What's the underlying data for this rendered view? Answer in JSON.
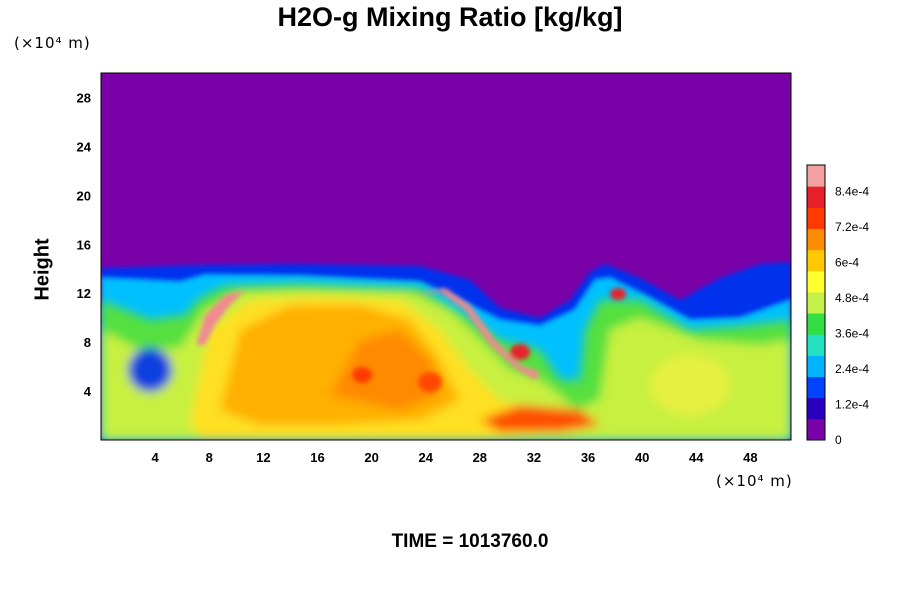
{
  "chart_data": {
    "type": "heatmap",
    "title": "H2O-g Mixing Ratio [kg/kg]",
    "ylabel": "Height",
    "x_unit_label": "(×10⁴ m)",
    "y_unit_label": "(×10⁴ m)",
    "time_label": "TIME = 1013760.0",
    "xlim": [
      0,
      51
    ],
    "ylim": [
      0,
      30
    ],
    "x_ticks": [
      "4",
      "8",
      "12",
      "16",
      "20",
      "24",
      "28",
      "32",
      "36",
      "40",
      "44",
      "48"
    ],
    "y_ticks": [
      "4",
      "8",
      "12",
      "16",
      "20",
      "24",
      "28"
    ],
    "colorbar": {
      "min": 0,
      "max": 0.00093,
      "tick_labels": [
        "0",
        "1.2e-4",
        "2.4e-4",
        "3.6e-4",
        "4.8e-4",
        "6e-4",
        "7.2e-4",
        "8.4e-4"
      ],
      "tick_values": [
        0,
        0.00012,
        0.00024,
        0.00036,
        0.00048,
        0.0006,
        0.00072,
        0.00084
      ],
      "colors": [
        "#7a00a8",
        "#2a00c0",
        "#0044ff",
        "#00b4ff",
        "#22e0c0",
        "#33dd44",
        "#c4f04a",
        "#ffff30",
        "#ffc800",
        "#ff8c00",
        "#ff3a00",
        "#e8202a",
        "#f2a0a0"
      ]
    },
    "field_description_values": {
      "dry_layer_mixing_ratio": 0,
      "moist_layer_top_height_approx": 14,
      "peak_mixing_ratio_approx": 0.00091
    }
  }
}
